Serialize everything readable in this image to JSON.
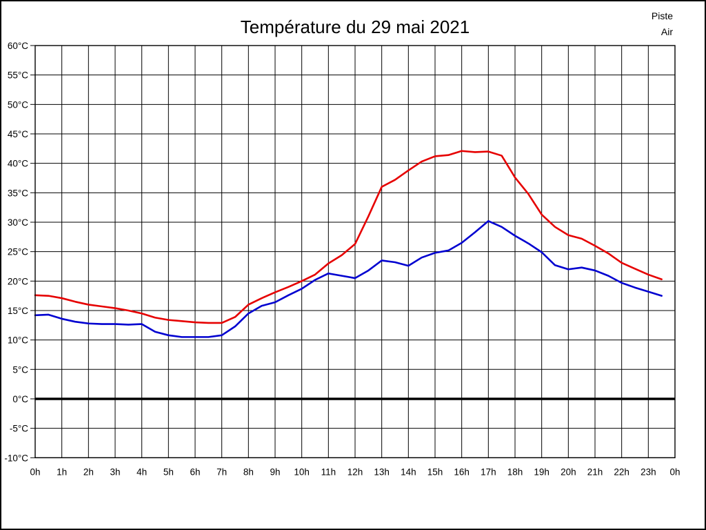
{
  "window": {
    "background": "#ffffff",
    "border_color": "#000000"
  },
  "chart_data": {
    "type": "line",
    "title": "Température du 29 mai 2021",
    "xlabel": "",
    "ylabel": "",
    "xlim": [
      0,
      24
    ],
    "ylim": [
      -10,
      60
    ],
    "y_step": 5,
    "grid": true,
    "grid_color": "#000000",
    "zero_line": {
      "value": 0,
      "color": "#000000",
      "width": 3.5
    },
    "x_tick_labels": [
      "0h",
      "1h",
      "2h",
      "3h",
      "4h",
      "5h",
      "6h",
      "7h",
      "8h",
      "9h",
      "10h",
      "11h",
      "12h",
      "13h",
      "14h",
      "15h",
      "16h",
      "17h",
      "18h",
      "19h",
      "20h",
      "21h",
      "22h",
      "23h",
      "0h"
    ],
    "y_tick_labels": [
      "60°C",
      "55°C",
      "50°C",
      "45°C",
      "40°C",
      "35°C",
      "30°C",
      "25°C",
      "20°C",
      "15°C",
      "10°C",
      "5°C",
      "0°C",
      "-5°C",
      "-10°C"
    ],
    "legend": {
      "position": "top-right",
      "entries": [
        {
          "label": "Piste",
          "color": "#e60000"
        },
        {
          "label": "Air",
          "color": "#0000d0"
        }
      ]
    },
    "x": [
      0,
      0.5,
      1,
      1.5,
      2,
      2.5,
      3,
      3.5,
      4,
      4.5,
      5,
      5.5,
      6,
      6.5,
      7,
      7.5,
      8,
      8.5,
      9,
      9.5,
      10,
      10.5,
      11,
      11.5,
      12,
      12.5,
      13,
      13.5,
      14,
      14.5,
      15,
      15.5,
      16,
      16.5,
      17,
      17.5,
      18,
      18.5,
      19,
      19.5,
      20,
      20.5,
      21,
      21.5,
      22,
      22.5,
      23,
      23.5
    ],
    "series": [
      {
        "name": "Piste",
        "color": "#e60000",
        "values": [
          17.6,
          17.5,
          17.1,
          16.5,
          16.0,
          15.7,
          15.4,
          15.0,
          14.5,
          13.8,
          13.4,
          13.2,
          13.0,
          12.9,
          12.9,
          13.9,
          16.0,
          17.1,
          18.1,
          19.0,
          20.0,
          21.1,
          23.0,
          24.4,
          26.3,
          31.0,
          36.0,
          37.2,
          38.8,
          40.3,
          41.2,
          41.4,
          42.1,
          41.9,
          42.0,
          41.3,
          37.6,
          34.8,
          31.3,
          29.2,
          27.8,
          27.2,
          26.0,
          24.7,
          23.1,
          22.1,
          21.1,
          20.3
        ]
      },
      {
        "name": "Air",
        "color": "#0000d0",
        "values": [
          14.2,
          14.3,
          13.6,
          13.1,
          12.8,
          12.7,
          12.7,
          12.6,
          12.7,
          11.4,
          10.8,
          10.5,
          10.5,
          10.5,
          10.8,
          12.3,
          14.5,
          15.8,
          16.4,
          17.6,
          18.7,
          20.2,
          21.3,
          20.9,
          20.5,
          21.8,
          23.5,
          23.2,
          22.6,
          24.0,
          24.8,
          25.2,
          26.5,
          28.3,
          30.2,
          29.2,
          27.7,
          26.4,
          24.9,
          22.7,
          22.0,
          22.3,
          21.8,
          20.9,
          19.7,
          18.9,
          18.2,
          17.5
        ]
      }
    ]
  }
}
